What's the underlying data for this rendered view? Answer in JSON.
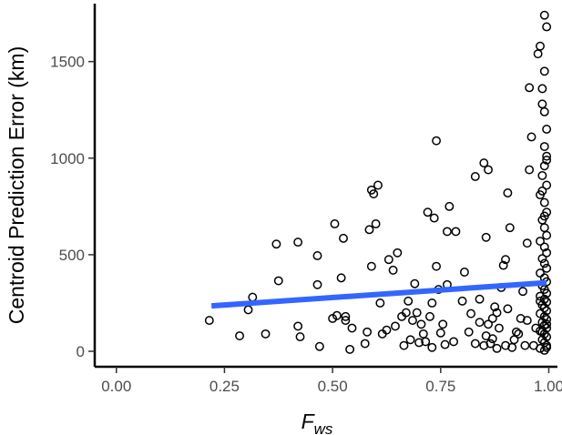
{
  "chart_data": {
    "type": "scatter",
    "title": "",
    "xlabel": "F",
    "xlabel_subscript": "ws",
    "ylabel": "Centroid Prediction Error (km)",
    "xlim": [
      -0.05,
      1.02
    ],
    "ylim": [
      -80,
      1800
    ],
    "x_ticks": [
      0,
      0.25,
      0.5,
      0.75,
      1
    ],
    "x_tick_labels": [
      "0.00",
      "0.25",
      "0.50",
      "0.75",
      "1.00"
    ],
    "y_ticks": [
      0,
      500,
      1000,
      1500
    ],
    "y_tick_labels": [
      "0",
      "500",
      "1000",
      "1500"
    ],
    "grid": false,
    "legend": "none",
    "point_color": "#000000",
    "fit_color": "#3366ff",
    "fit_line": {
      "x": [
        0.22,
        0.995
      ],
      "y": [
        235,
        355
      ]
    },
    "points": [
      [
        0.215,
        160
      ],
      [
        0.285,
        80
      ],
      [
        0.305,
        215
      ],
      [
        0.315,
        280
      ],
      [
        0.345,
        90
      ],
      [
        0.37,
        555
      ],
      [
        0.375,
        365
      ],
      [
        0.42,
        565
      ],
      [
        0.42,
        130
      ],
      [
        0.425,
        75
      ],
      [
        0.465,
        345
      ],
      [
        0.465,
        495
      ],
      [
        0.47,
        25
      ],
      [
        0.5,
        170
      ],
      [
        0.505,
        660
      ],
      [
        0.51,
        185
      ],
      [
        0.52,
        380
      ],
      [
        0.525,
        585
      ],
      [
        0.53,
        160
      ],
      [
        0.53,
        180
      ],
      [
        0.54,
        10
      ],
      [
        0.545,
        120
      ],
      [
        0.575,
        40
      ],
      [
        0.58,
        100
      ],
      [
        0.585,
        630
      ],
      [
        0.59,
        440
      ],
      [
        0.59,
        835
      ],
      [
        0.595,
        815
      ],
      [
        0.6,
        660
      ],
      [
        0.605,
        860
      ],
      [
        0.61,
        250
      ],
      [
        0.615,
        90
      ],
      [
        0.625,
        110
      ],
      [
        0.63,
        475
      ],
      [
        0.64,
        420
      ],
      [
        0.645,
        130
      ],
      [
        0.65,
        510
      ],
      [
        0.66,
        180
      ],
      [
        0.665,
        30
      ],
      [
        0.67,
        200
      ],
      [
        0.675,
        260
      ],
      [
        0.68,
        60
      ],
      [
        0.685,
        160
      ],
      [
        0.69,
        350
      ],
      [
        0.695,
        200
      ],
      [
        0.7,
        45
      ],
      [
        0.705,
        140
      ],
      [
        0.71,
        90
      ],
      [
        0.715,
        50
      ],
      [
        0.72,
        720
      ],
      [
        0.725,
        180
      ],
      [
        0.73,
        20
      ],
      [
        0.73,
        250
      ],
      [
        0.735,
        690
      ],
      [
        0.74,
        1090
      ],
      [
        0.74,
        440
      ],
      [
        0.745,
        320
      ],
      [
        0.75,
        95
      ],
      [
        0.755,
        140
      ],
      [
        0.76,
        35
      ],
      [
        0.765,
        620
      ],
      [
        0.765,
        345
      ],
      [
        0.77,
        750
      ],
      [
        0.78,
        50
      ],
      [
        0.785,
        620
      ],
      [
        0.8,
        260
      ],
      [
        0.805,
        410
      ],
      [
        0.815,
        100
      ],
      [
        0.82,
        195
      ],
      [
        0.83,
        905
      ],
      [
        0.83,
        40
      ],
      [
        0.84,
        270
      ],
      [
        0.84,
        150
      ],
      [
        0.85,
        975
      ],
      [
        0.85,
        30
      ],
      [
        0.855,
        590
      ],
      [
        0.855,
        80
      ],
      [
        0.86,
        940
      ],
      [
        0.86,
        140
      ],
      [
        0.865,
        40
      ],
      [
        0.87,
        170
      ],
      [
        0.87,
        65
      ],
      [
        0.875,
        230
      ],
      [
        0.88,
        15
      ],
      [
        0.88,
        200
      ],
      [
        0.885,
        120
      ],
      [
        0.89,
        330
      ],
      [
        0.895,
        445
      ],
      [
        0.9,
        475
      ],
      [
        0.9,
        30
      ],
      [
        0.905,
        820
      ],
      [
        0.905,
        220
      ],
      [
        0.91,
        640
      ],
      [
        0.915,
        20
      ],
      [
        0.92,
        60
      ],
      [
        0.925,
        100
      ],
      [
        0.93,
        90
      ],
      [
        0.935,
        170
      ],
      [
        0.94,
        310
      ],
      [
        0.945,
        30
      ],
      [
        0.95,
        560
      ],
      [
        0.95,
        160
      ],
      [
        0.955,
        1365
      ],
      [
        0.955,
        940
      ],
      [
        0.96,
        1110
      ],
      [
        0.965,
        30
      ],
      [
        0.97,
        120
      ],
      [
        0.975,
        1540
      ],
      [
        0.98,
        1580
      ],
      [
        0.985,
        1360
      ],
      [
        0.99,
        1740
      ],
      [
        0.995,
        1680
      ],
      [
        0.985,
        1280
      ],
      [
        0.99,
        1450
      ],
      [
        0.99,
        1240
      ],
      [
        0.995,
        1150
      ],
      [
        0.99,
        1060
      ],
      [
        0.995,
        1010
      ],
      [
        0.99,
        960
      ],
      [
        0.985,
        910
      ],
      [
        0.995,
        860
      ],
      [
        0.98,
        810
      ],
      [
        0.99,
        770
      ],
      [
        0.995,
        720
      ],
      [
        0.985,
        680
      ],
      [
        0.99,
        640
      ],
      [
        0.995,
        600
      ],
      [
        0.98,
        570
      ],
      [
        0.99,
        540
      ],
      [
        0.995,
        510
      ],
      [
        0.985,
        480
      ],
      [
        0.99,
        455
      ],
      [
        0.995,
        430
      ],
      [
        0.98,
        405
      ],
      [
        0.99,
        380
      ],
      [
        0.995,
        360
      ],
      [
        0.985,
        340
      ],
      [
        0.99,
        320
      ],
      [
        0.995,
        300
      ],
      [
        0.98,
        285
      ],
      [
        0.99,
        270
      ],
      [
        0.995,
        255
      ],
      [
        0.985,
        240
      ],
      [
        0.99,
        225
      ],
      [
        0.995,
        210
      ],
      [
        0.98,
        195
      ],
      [
        0.99,
        180
      ],
      [
        0.995,
        165
      ],
      [
        0.985,
        150
      ],
      [
        0.99,
        135
      ],
      [
        0.995,
        120
      ],
      [
        0.98,
        105
      ],
      [
        0.99,
        90
      ],
      [
        0.995,
        75
      ],
      [
        0.985,
        60
      ],
      [
        0.99,
        45
      ],
      [
        0.995,
        30
      ],
      [
        0.98,
        15
      ],
      [
        0.99,
        5
      ],
      [
        0.995,
        20
      ],
      [
        0.985,
        100
      ],
      [
        0.995,
        140
      ],
      [
        0.98,
        260
      ],
      [
        0.99,
        700
      ],
      [
        0.985,
        830
      ],
      [
        0.995,
        990
      ]
    ]
  }
}
